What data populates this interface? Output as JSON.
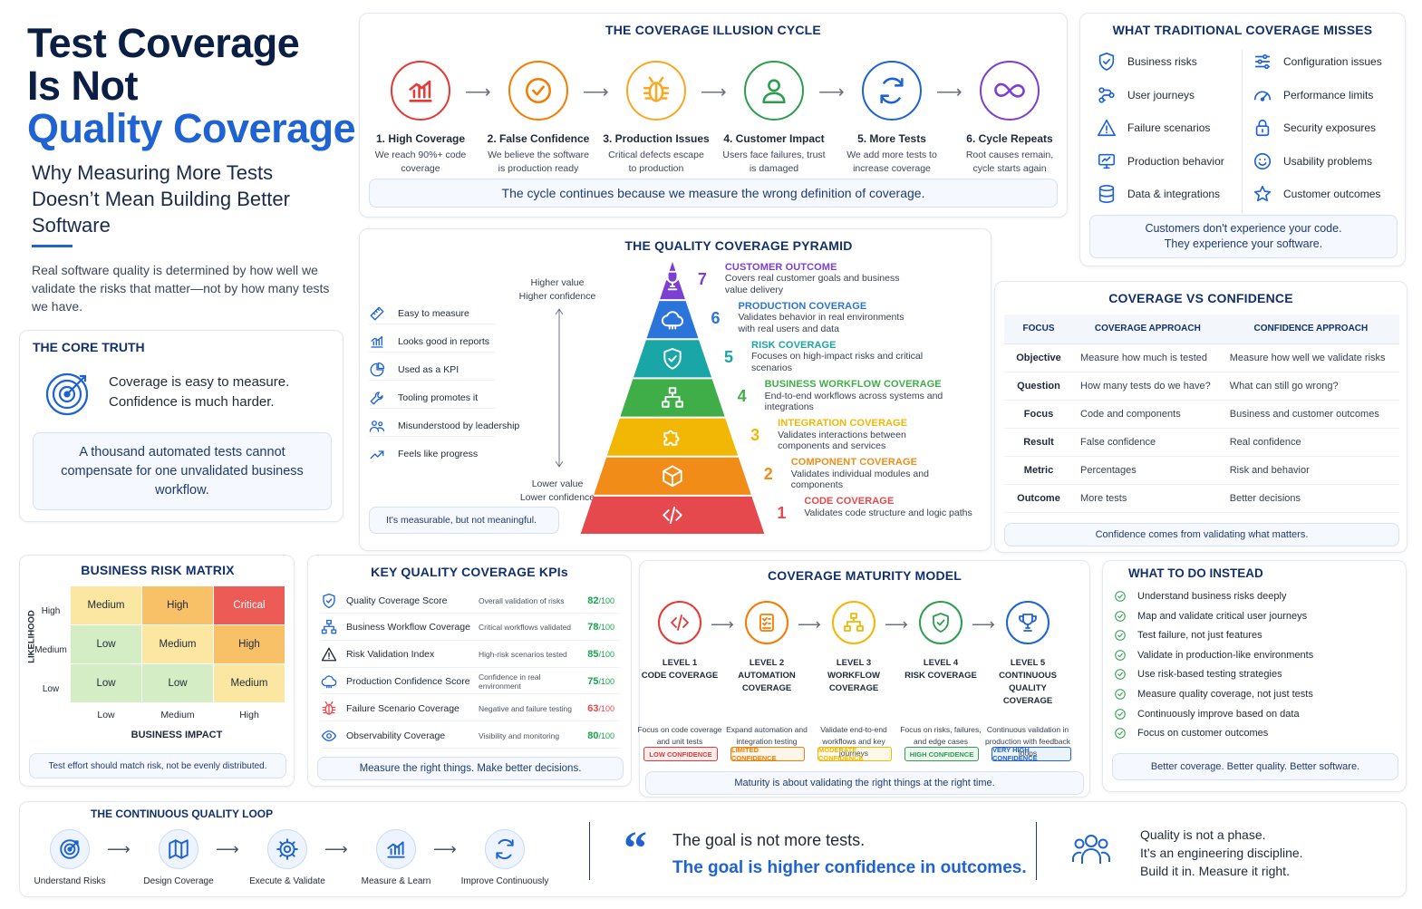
{
  "hero": {
    "title_line1": "Test Coverage",
    "title_line2": "Is Not",
    "title_line3": "Quality Coverage",
    "subtitle": "Why Measuring More Tests Doesn’t Mean Building Better Software",
    "description": "Real software quality is determined by how well we validate the risks that matter—not by how many tests we have."
  },
  "core_truth": {
    "title": "THE CORE TRUTH",
    "line1": "Coverage is easy to measure.",
    "line2": "Confidence is much harder.",
    "note": "A thousand automated tests cannot compensate for one unvalidated business workflow."
  },
  "cycle": {
    "title": "THE COVERAGE ILLUSION CYCLE",
    "steps": [
      {
        "title": "1. High Coverage",
        "desc": "We reach 90%+ code coverage",
        "color": "#e53935",
        "icon": "bar-chart-icon"
      },
      {
        "title": "2. False Confidence",
        "desc": "We believe the software is production ready",
        "color": "#f57c00",
        "icon": "check-circle-icon"
      },
      {
        "title": "3. Production Issues",
        "desc": "Critical defects escape to production",
        "color": "#f9a825",
        "icon": "bug-icon"
      },
      {
        "title": "4. Customer Impact",
        "desc": "Users face failures, trust is damaged",
        "color": "#2e9d4f",
        "icon": "user-icon"
      },
      {
        "title": "5. More Tests",
        "desc": "We add more tests to increase coverage",
        "color": "#1f63d2",
        "icon": "refresh-icon"
      },
      {
        "title": "6. Cycle Repeats",
        "desc": "Root causes remain, cycle starts again",
        "color": "#7b3fd1",
        "icon": "infinity-icon"
      }
    ],
    "note": "The cycle continues because we measure the wrong definition of coverage."
  },
  "misses": {
    "title": "WHAT TRADITIONAL COVERAGE MISSES",
    "left": [
      {
        "label": "Business risks",
        "icon": "shield-icon"
      },
      {
        "label": "User journeys",
        "icon": "journey-icon"
      },
      {
        "label": "Failure scenarios",
        "icon": "warning-icon"
      },
      {
        "label": "Production behavior",
        "icon": "monitor-icon"
      },
      {
        "label": "Data & integrations",
        "icon": "database-icon"
      }
    ],
    "right": [
      {
        "label": "Configuration issues",
        "icon": "sliders-icon"
      },
      {
        "label": "Performance limits",
        "icon": "gauge-icon"
      },
      {
        "label": "Security exposures",
        "icon": "lock-icon"
      },
      {
        "label": "Usability problems",
        "icon": "smile-icon"
      },
      {
        "label": "Customer outcomes",
        "icon": "star-icon"
      }
    ],
    "note_line1": "Customers don't experience your code.",
    "note_line2": "They experience your software."
  },
  "pyramid": {
    "title": "THE QUALITY COVERAGE PYRAMID",
    "top_axis_line1": "Higher value",
    "top_axis_line2": "Higher confidence",
    "bottom_axis_line1": "Lower value",
    "bottom_axis_line2": "Lower confidence",
    "left_items": [
      {
        "label": "Easy to measure",
        "icon": "ruler-icon"
      },
      {
        "label": "Looks good in reports",
        "icon": "bar-chart-icon"
      },
      {
        "label": "Used as a KPI",
        "icon": "pie-chart-icon"
      },
      {
        "label": "Tooling promotes it",
        "icon": "wrench-icon"
      },
      {
        "label": "Misunderstood by leadership",
        "icon": "people-icon"
      },
      {
        "label": "Feels like progress",
        "icon": "trend-up-icon"
      }
    ],
    "left_note": "It's measurable, but not meaningful.",
    "levels": [
      {
        "num": "7",
        "name": "CUSTOMER OUTCOME",
        "desc": "Covers real customer goals and business value delivery",
        "color": "#7b3fd1",
        "icon": "trophy-icon"
      },
      {
        "num": "6",
        "name": "PRODUCTION COVERAGE",
        "desc": "Validates behavior in real environments with real users and data",
        "color": "#2b74d9",
        "icon": "cloud-icon"
      },
      {
        "num": "5",
        "name": "RISK COVERAGE",
        "desc": "Focuses on high-impact risks and critical scenarios",
        "color": "#1aa6a6",
        "icon": "shield-check-icon"
      },
      {
        "num": "4",
        "name": "BUSINESS WORKFLOW COVERAGE",
        "desc": "End-to-end workflows across systems and integrations",
        "color": "#3fae49",
        "icon": "workflow-icon"
      },
      {
        "num": "3",
        "name": "INTEGRATION COVERAGE",
        "desc": "Validates interactions between components and services",
        "color": "#f2b705",
        "icon": "puzzle-icon"
      },
      {
        "num": "2",
        "name": "COMPONENT COVERAGE",
        "desc": "Validates individual modules and components",
        "color": "#f28c18",
        "icon": "cube-icon"
      },
      {
        "num": "1",
        "name": "CODE COVERAGE",
        "desc": "Validates code structure and logic paths",
        "color": "#e5484d",
        "icon": "code-icon"
      }
    ]
  },
  "compare": {
    "title": "COVERAGE VS CONFIDENCE",
    "headers": [
      "FOCUS",
      "COVERAGE APPROACH",
      "CONFIDENCE APPROACH"
    ],
    "rows": [
      [
        "Objective",
        "Measure how much is tested",
        "Measure how well we validate risks"
      ],
      [
        "Question",
        "How many tests do we have?",
        "What can still go wrong?"
      ],
      [
        "Focus",
        "Code and components",
        "Business and customer outcomes"
      ],
      [
        "Result",
        "False confidence",
        "Real confidence"
      ],
      [
        "Metric",
        "Percentages",
        "Risk and behavior"
      ],
      [
        "Outcome",
        "More tests",
        "Better decisions"
      ]
    ],
    "note": "Confidence comes from validating what matters."
  },
  "matrix": {
    "title": "BUSINESS RISK MATRIX",
    "y_label": "LIKELIHOOD",
    "x_label": "BUSINESS IMPACT",
    "rows": [
      "High",
      "Medium",
      "Low"
    ],
    "cols": [
      "Low",
      "Medium",
      "High"
    ],
    "cells": [
      [
        "Medium",
        "High",
        "Critical"
      ],
      [
        "Low",
        "Medium",
        "High"
      ],
      [
        "Low",
        "Low",
        "Medium"
      ]
    ],
    "colors": {
      "Low": "#d4edc4",
      "Medium": "#fbe6a2",
      "High": "#f8c067",
      "Critical": "#ec5b55"
    },
    "note": "Test effort should match risk, not be evenly distributed."
  },
  "kpis": {
    "title": "KEY QUALITY COVERAGE KPIs",
    "items": [
      {
        "name": "Quality Coverage Score",
        "desc": "Overall validation of risks",
        "value": "82",
        "icon": "shield-icon"
      },
      {
        "name": "Business Workflow Coverage",
        "desc": "Critical workflows validated",
        "value": "78",
        "icon": "workflow-icon"
      },
      {
        "name": "Risk Validation Index",
        "desc": "High-risk scenarios tested",
        "value": "85",
        "icon": "warning-icon"
      },
      {
        "name": "Production Confidence Score",
        "desc": "Confidence in real environment",
        "value": "75",
        "icon": "cloud-icon"
      },
      {
        "name": "Failure Scenario Coverage",
        "desc": "Negative and failure testing",
        "value": "63",
        "icon": "bug-icon"
      },
      {
        "name": "Observability Coverage",
        "desc": "Visibility and monitoring",
        "value": "80",
        "icon": "eye-icon"
      }
    ],
    "value_suffix": "/100",
    "note": "Measure the right things. Make better decisions."
  },
  "maturity": {
    "title": "COVERAGE MATURITY MODEL",
    "levels": [
      {
        "level": "LEVEL 1",
        "name": "CODE COVERAGE",
        "desc": "Focus on code coverage and unit tests",
        "badge": "LOW CONFIDENCE",
        "color": "#e53935",
        "icon": "code-icon"
      },
      {
        "level": "LEVEL 2",
        "name": "AUTOMATION COVERAGE",
        "desc": "Expand automation and integration testing",
        "badge": "LIMITED CONFIDENCE",
        "color": "#f57c00",
        "icon": "checklist-icon"
      },
      {
        "level": "LEVEL 3",
        "name": "WORKFLOW COVERAGE",
        "desc": "Validate end-to-end workflows and key journeys",
        "badge": "MODERATE CONFIDENCE",
        "color": "#f2b705",
        "icon": "workflow-icon"
      },
      {
        "level": "LEVEL 4",
        "name": "RISK COVERAGE",
        "desc": "Focus on risks, failures, and edge cases",
        "badge": "HIGH CONFIDENCE",
        "color": "#2e9d4f",
        "icon": "shield-check-icon"
      },
      {
        "level": "LEVEL 5",
        "name": "CONTINUOUS QUALITY COVERAGE",
        "desc": "Continuous validation in production with feedback loops",
        "badge": "VERY HIGH CONFIDENCE",
        "color": "#1f63d2",
        "icon": "trophy-icon"
      }
    ],
    "note": "Maturity is about validating the right things at the right time."
  },
  "todo": {
    "title": "WHAT TO DO INSTEAD",
    "items": [
      "Understand business risks deeply",
      "Map and validate critical user journeys",
      "Test failure, not just features",
      "Validate in production-like environments",
      "Use risk-based testing strategies",
      "Measure quality coverage, not just tests",
      "Continuously improve based on data",
      "Focus on customer outcomes"
    ],
    "note": "Better coverage. Better quality. Better software."
  },
  "loop": {
    "title": "THE CONTINUOUS QUALITY LOOP",
    "steps": [
      {
        "label": "Understand Risks",
        "icon": "target-icon"
      },
      {
        "label": "Design Coverage",
        "icon": "map-icon"
      },
      {
        "label": "Execute & Validate",
        "icon": "gear-icon"
      },
      {
        "label": "Measure & Learn",
        "icon": "bar-chart-icon"
      },
      {
        "label": "Improve Continuously",
        "icon": "refresh-icon"
      }
    ]
  },
  "quote": {
    "line1": "The goal is not more tests.",
    "line2": "The goal is higher confidence in outcomes."
  },
  "closing": {
    "line1": "Quality is not a phase.",
    "line2": "It’s an engineering discipline.",
    "line3": "Build it in. Measure it right."
  }
}
